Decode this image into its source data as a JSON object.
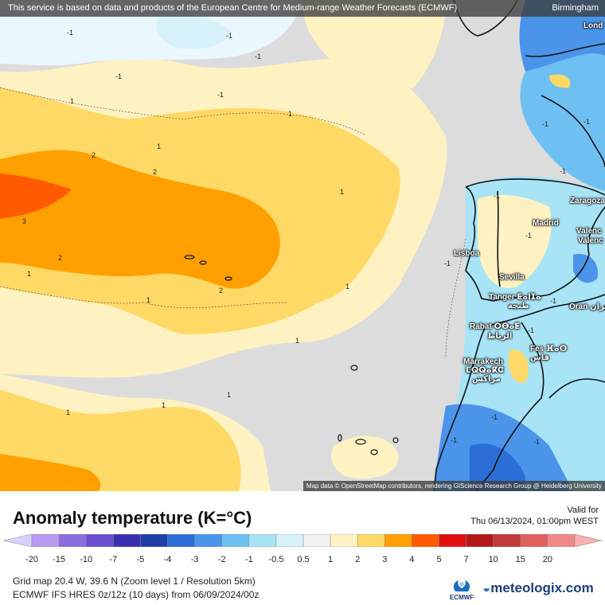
{
  "attribution_top": "This service is based on data and products of the European Centre for Medium-range Weather Forecasts (ECMWF)",
  "attribution_bottom": "Map data © OpenStreetMap contributors, rendering GIScience Research Group @ Heidelberg University",
  "cities": {
    "birmingham": "Birmingham",
    "london": "Lond",
    "zaragoza": "Zaragoza",
    "madrid": "Madrid",
    "valencia1": "Valenc",
    "valencia2": "Valenc",
    "lisboa": "Lisboa",
    "sevilla": "Sevilla",
    "tanger": "Tanger ⵟⴰⵏⵊⴰ",
    "tanger_ar": "طنجة",
    "oran": "Oran وهران",
    "rabat": "Rabat ⵔⴱⴰⵟ",
    "rabat_ar": "الرباط",
    "fes": "Fes ⴼⴰⵙ",
    "fes_ar": "فاس",
    "marrakech": "Marrakech",
    "marrakech_tf": "ⵎⵕⵕⴰⴽⵛ",
    "marrakech_ar": "مراكش"
  },
  "contour_labels": [
    "-1",
    "-1",
    "-1",
    "-1",
    "-1",
    "1",
    "1",
    "1",
    "1",
    "2",
    "2",
    "2",
    "3",
    "2",
    "1",
    "1",
    "1",
    "1",
    "1",
    "1",
    "1",
    "-1",
    "-1",
    "-1",
    "-1",
    "-1",
    "-1",
    "-1",
    "-1",
    "-1",
    "-1",
    "-1"
  ],
  "legend": {
    "title": "Anomaly temperature (K=°C)",
    "valid_label": "Valid for",
    "valid_date": "Thu 06/13/2024, 01:00pm WEST",
    "ticks": [
      "-20",
      "-15",
      "-10",
      "-7",
      "-5",
      "-4",
      "-3",
      "-2",
      "-1",
      "-0.5",
      "0.5",
      "1",
      "2",
      "3",
      "4",
      "5",
      "7",
      "10",
      "15",
      "20"
    ],
    "colors": [
      "#b79bf2",
      "#8a6ee0",
      "#6a4fd0",
      "#3a2fb0",
      "#1d3fa8",
      "#2b6fd6",
      "#4a95ea",
      "#6fc0f2",
      "#a8e4f6",
      "#d8f2fb",
      "#f2f2f2",
      "#fff2c2",
      "#ffd966",
      "#ffa000",
      "#ff5a00",
      "#e01010",
      "#b21818",
      "#c23a3a",
      "#e06060",
      "#f08a8a",
      "#f7b0b0"
    ]
  },
  "footer": {
    "grid": "Grid map 20.4 W, 39.6 N (Zoom level 1 / Resolution 5km)",
    "model": "ECMWF IFS HRES 0z/12z (10 days) from  06/09/2024/00z"
  },
  "logos": {
    "ecmwf": "ECMWF",
    "meteologix": "meteologix.com"
  }
}
